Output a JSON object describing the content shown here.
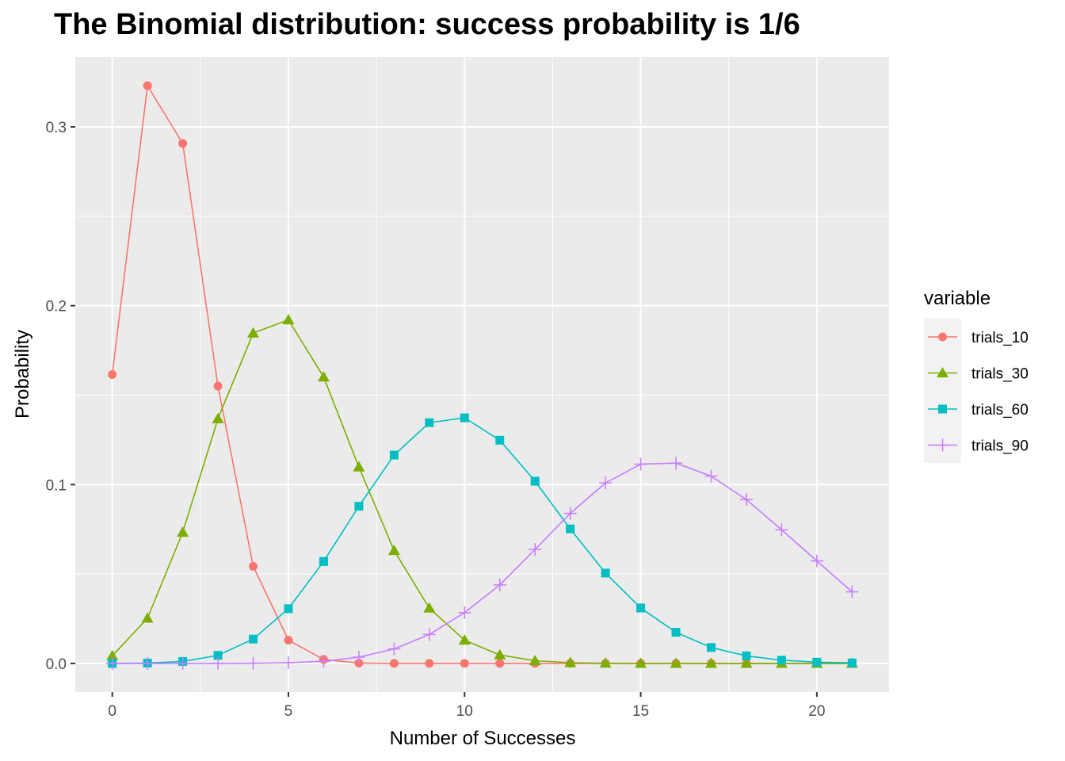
{
  "chart_data": {
    "type": "line",
    "title": "The Binomial distribution: success probability is 1/6",
    "xlabel": "Number of Successes",
    "ylabel": "Probability",
    "xlim": [
      -1.05,
      22.05
    ],
    "ylim": [
      -0.016,
      0.339
    ],
    "x_ticks": [
      0,
      5,
      10,
      15,
      20
    ],
    "y_ticks": [
      0.0,
      0.1,
      0.2,
      0.3
    ],
    "x_tick_labels": [
      "0",
      "5",
      "10",
      "15",
      "20"
    ],
    "y_tick_labels": [
      "0.0",
      "0.1",
      "0.2",
      "0.3"
    ],
    "grid": true,
    "legend_title": "variable",
    "legend_position": "right",
    "x": [
      0,
      1,
      2,
      3,
      4,
      5,
      6,
      7,
      8,
      9,
      10,
      11,
      12,
      13,
      14,
      15,
      16,
      17,
      18,
      19,
      20,
      21
    ],
    "series": [
      {
        "name": "trials_10",
        "color": "#F8766D",
        "marker": "circle",
        "values": [
          0.1615,
          0.323,
          0.2907,
          0.155,
          0.0543,
          0.013,
          0.0022,
          0.0002,
          0.0,
          0.0,
          0.0,
          0.0,
          0.0,
          0.0,
          0.0,
          0.0,
          0.0,
          0.0,
          0.0,
          0.0,
          0.0,
          0.0
        ]
      },
      {
        "name": "trials_30",
        "color": "#7CAE00",
        "marker": "triangle",
        "values": [
          0.0042,
          0.0253,
          0.0733,
          0.1368,
          0.1847,
          0.1921,
          0.1601,
          0.1098,
          0.0631,
          0.0309,
          0.013,
          0.0047,
          0.0015,
          0.0004,
          0.0001,
          0.0,
          0.0,
          0.0,
          0.0,
          0.0,
          0.0,
          0.0
        ]
      },
      {
        "name": "trials_60",
        "color": "#00BFC4",
        "marker": "square",
        "values": [
          0.0,
          0.0002,
          0.0011,
          0.0045,
          0.0136,
          0.0306,
          0.057,
          0.0879,
          0.1165,
          0.1346,
          0.1373,
          0.1248,
          0.1019,
          0.0752,
          0.0505,
          0.031,
          0.0174,
          0.0089,
          0.0042,
          0.0018,
          0.0007,
          0.0003
        ]
      },
      {
        "name": "trials_90",
        "color": "#C77CFF",
        "marker": "plus",
        "values": [
          0.0,
          0.0,
          0.0,
          0.0,
          0.0001,
          0.0004,
          0.0012,
          0.0035,
          0.0081,
          0.0162,
          0.0284,
          0.0439,
          0.0637,
          0.0839,
          0.1009,
          0.1114,
          0.112,
          0.1047,
          0.0916,
          0.0747,
          0.0573,
          0.04
        ]
      }
    ]
  }
}
